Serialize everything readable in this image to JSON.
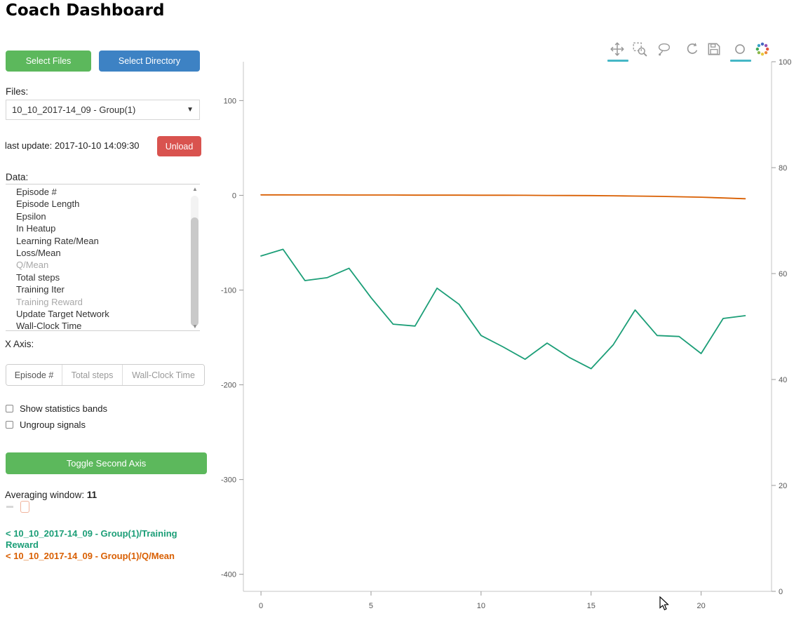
{
  "page": {
    "title": "Coach Dashboard"
  },
  "icons": {
    "caret_down": "▼",
    "scroll_up": "▲",
    "scroll_down": "▼"
  },
  "sidebar": {
    "select_files_label": "Select Files",
    "select_directory_label": "Select Directory",
    "files_label": "Files:",
    "files_select_value": "10_10_2017-14_09 - Group(1)",
    "last_update": "last update: 2017-10-10 14:09:30",
    "unload_label": "Unload",
    "data_label": "Data:",
    "data_items": [
      {
        "label": "Episode #",
        "selected": false
      },
      {
        "label": "Episode Length",
        "selected": false
      },
      {
        "label": "Epsilon",
        "selected": false
      },
      {
        "label": "In Heatup",
        "selected": false
      },
      {
        "label": "Learning Rate/Mean",
        "selected": false
      },
      {
        "label": "Loss/Mean",
        "selected": false
      },
      {
        "label": "Q/Mean",
        "selected": true
      },
      {
        "label": "Total steps",
        "selected": false
      },
      {
        "label": "Training Iter",
        "selected": false
      },
      {
        "label": "Training Reward",
        "selected": true
      },
      {
        "label": "Update Target Network",
        "selected": false
      },
      {
        "label": "Wall-Clock Time",
        "selected": false
      }
    ],
    "x_axis_label": "X Axis:",
    "x_axis_options": [
      {
        "label": "Episode #",
        "active": true
      },
      {
        "label": "Total steps",
        "active": false
      },
      {
        "label": "Wall-Clock Time",
        "active": false
      }
    ],
    "checkboxes": [
      {
        "label": "Show statistics bands",
        "checked": false
      },
      {
        "label": "Ungroup signals",
        "checked": false
      }
    ],
    "toggle_second_axis_label": "Toggle Second Axis",
    "averaging_window_label": "Averaging window:",
    "averaging_window_value": "11",
    "legend": [
      {
        "label": "< 10_10_2017-14_09 - Group(1)/Training Reward",
        "color": "#1b9e77"
      },
      {
        "label": "< 10_10_2017-14_09 - Group(1)/Q/Mean",
        "color": "#d95f02"
      }
    ]
  },
  "toolbar": {
    "active_color": "#45b7c6",
    "tools": [
      {
        "name": "pan-tool-icon",
        "active": true
      },
      {
        "name": "box-zoom-icon",
        "active": false
      },
      {
        "name": "lasso-select-icon",
        "active": false
      },
      {
        "name": "reset-icon",
        "active": false
      },
      {
        "name": "save-icon",
        "active": false
      },
      {
        "name": "hover-tool-icon",
        "active": true
      },
      {
        "name": "bokeh-logo",
        "active": false
      }
    ]
  },
  "chart_data": {
    "type": "line",
    "title": "",
    "xlabel": "",
    "ylabel": "",
    "grid": false,
    "legend_position": "left-sidebar",
    "x": [
      0,
      1,
      2,
      3,
      4,
      5,
      6,
      7,
      8,
      9,
      10,
      11,
      12,
      13,
      14,
      15,
      16,
      17,
      18,
      19,
      20,
      21,
      22
    ],
    "series": [
      {
        "name": "10_10_2017-14_09 - Group(1)/Training Reward",
        "color": "#1b9e77",
        "axis": "left",
        "values": [
          -64,
          -57,
          -90,
          -87,
          -77,
          -108,
          -136,
          -138,
          -98,
          -115,
          -148,
          -160,
          -173,
          -156,
          -171,
          -183,
          -158,
          -121,
          -148,
          -149,
          -167,
          -130,
          -127
        ]
      },
      {
        "name": "10_10_2017-14_09 - Group(1)/Q/Mean",
        "color": "#d95f02",
        "axis": "left",
        "values": [
          0.5,
          0.5,
          0.4,
          0.4,
          0.3,
          0.3,
          0.3,
          0.2,
          0.2,
          0.2,
          0.1,
          0.1,
          0,
          -0.1,
          -0.2,
          -0.3,
          -0.5,
          -0.8,
          -1.1,
          -1.5,
          -2,
          -2.8,
          -3.6
        ]
      }
    ],
    "x_axis": {
      "ticks": [
        0,
        5,
        10,
        15,
        20
      ],
      "range": [
        -0.8,
        23.2
      ]
    },
    "left_axis": {
      "ticks": [
        100,
        0,
        -100,
        -200,
        -300,
        -400
      ],
      "range": [
        -418,
        141
      ]
    },
    "right_axis": {
      "ticks": [
        100,
        80,
        60,
        40,
        20,
        0
      ],
      "range": [
        0,
        100
      ]
    }
  }
}
